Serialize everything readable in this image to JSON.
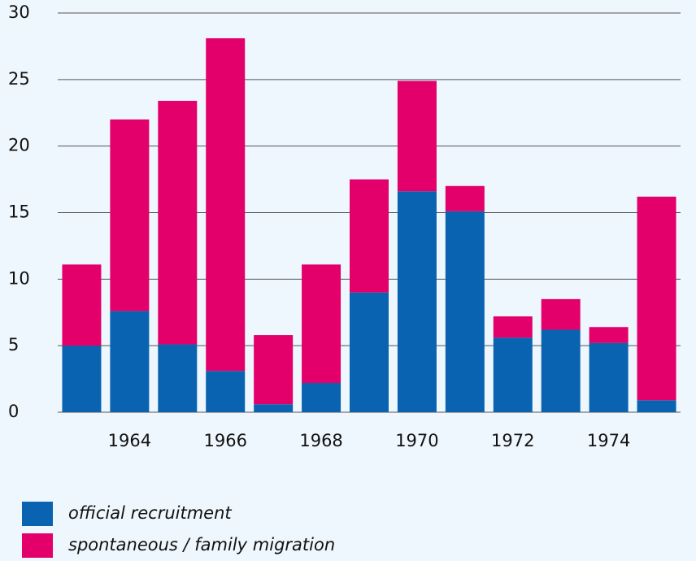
{
  "chart_data": {
    "type": "stacked_bar",
    "categories": [
      null,
      "1964",
      null,
      "1966",
      null,
      "1968",
      null,
      "1970",
      null,
      "1972",
      null,
      "1974",
      null
    ],
    "series": [
      {
        "name": "official recruitment",
        "color": "#0a63b0",
        "values": [
          5,
          7.6,
          5.1,
          3.1,
          0.6,
          2.2,
          9,
          16.6,
          15.1,
          5.6,
          6.2,
          5.2,
          0.9
        ]
      },
      {
        "name": "spontaneous / family migration",
        "color": "#e3006b",
        "values": [
          6.1,
          14.4,
          18.3,
          25.0,
          5.2,
          8.9,
          8.5,
          8.3,
          1.9,
          1.6,
          2.3,
          1.2,
          15.3
        ]
      }
    ],
    "ylim": [
      0,
      30
    ],
    "yticks": [
      0,
      5,
      10,
      15,
      20,
      25,
      30
    ],
    "grid": true
  }
}
